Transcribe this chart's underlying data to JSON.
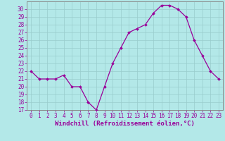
{
  "x": [
    0,
    1,
    2,
    3,
    4,
    5,
    6,
    7,
    8,
    9,
    10,
    11,
    12,
    13,
    14,
    15,
    16,
    17,
    18,
    19,
    20,
    21,
    22,
    23
  ],
  "y": [
    22,
    21,
    21,
    21,
    21.5,
    20,
    20,
    18,
    17,
    20,
    23,
    25,
    27,
    27.5,
    28,
    29.5,
    30.5,
    30.5,
    30,
    29,
    26,
    24,
    22,
    21
  ],
  "line_color": "#990099",
  "marker": "D",
  "marker_size": 2.0,
  "background_color": "#b3e8e8",
  "grid_color": "#99cccc",
  "xlabel": "Windchill (Refroidissement éolien,°C)",
  "ylim": [
    17,
    31
  ],
  "xlim": [
    -0.5,
    23.5
  ],
  "yticks": [
    17,
    18,
    19,
    20,
    21,
    22,
    23,
    24,
    25,
    26,
    27,
    28,
    29,
    30
  ],
  "xticks": [
    0,
    1,
    2,
    3,
    4,
    5,
    6,
    7,
    8,
    9,
    10,
    11,
    12,
    13,
    14,
    15,
    16,
    17,
    18,
    19,
    20,
    21,
    22,
    23
  ],
  "tick_label_fontsize": 5.5,
  "xlabel_fontsize": 6.5,
  "tick_color": "#990099",
  "axis_color": "#888888",
  "linewidth": 0.9
}
